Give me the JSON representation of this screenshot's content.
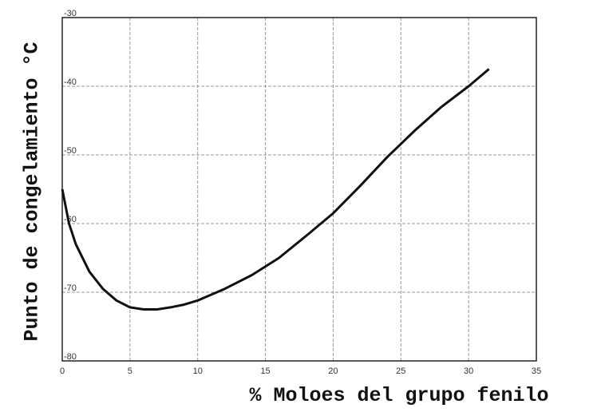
{
  "chart_data": {
    "type": "line",
    "xlabel": "% Moloes del grupo fenilo",
    "ylabel": "Punto de congelamiento °C",
    "x": [
      0,
      0.5,
      1,
      2,
      3,
      4,
      5,
      6,
      7,
      8,
      9,
      10,
      12,
      14,
      16,
      18,
      20,
      22,
      24,
      26,
      28,
      30,
      31.5
    ],
    "series": [
      {
        "color": "#111111",
        "values": [
          -55,
          -60,
          -63,
          -67,
          -69.5,
          -71.2,
          -72.2,
          -72.5,
          -72.5,
          -72.2,
          -71.8,
          -71.2,
          -69.5,
          -67.5,
          -65,
          -61.8,
          -58.5,
          -54.5,
          -50.3,
          -46.5,
          -43,
          -40,
          -37.5
        ]
      }
    ],
    "xlim": [
      0,
      35
    ],
    "xticks": [
      0,
      5,
      10,
      15,
      20,
      25,
      30,
      35
    ],
    "ylim": [
      -80,
      -30
    ],
    "yticks": [
      -80,
      -70,
      -60,
      -50,
      -40,
      -30
    ],
    "grid": true
  }
}
